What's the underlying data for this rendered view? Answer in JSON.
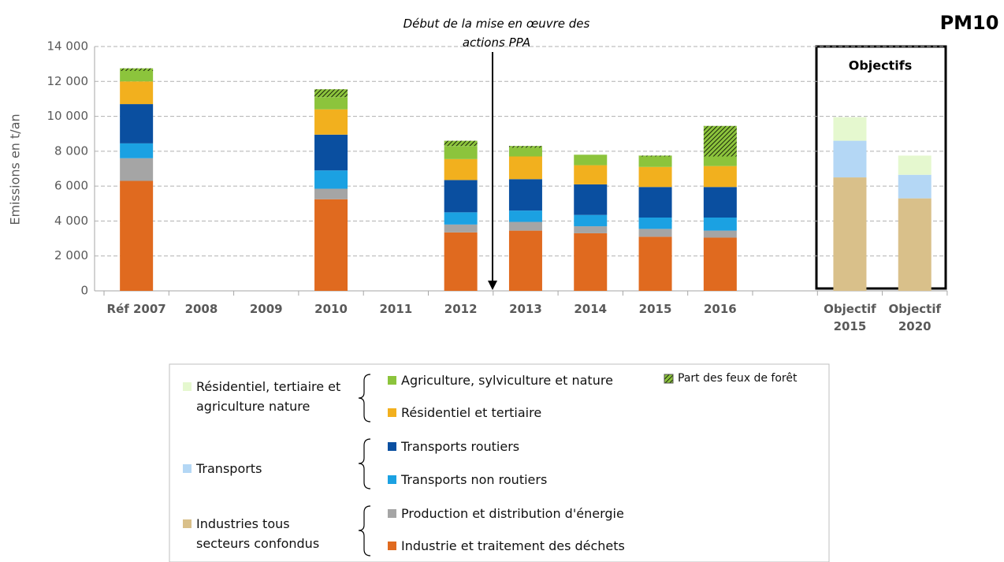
{
  "chart_data": {
    "type": "stacked-bar",
    "title": "PM10",
    "y_label": "Emissions en t/an",
    "annotation": "Début de la mise en œuvre des actions PPA",
    "box_label": "Objectifs",
    "categories": [
      "Réf 2007",
      "2008",
      "2009",
      "2010",
      "2011",
      "2012",
      "2013",
      "2014",
      "2015",
      "2016",
      null,
      "Objectif 2015",
      "Objectif 2020"
    ],
    "ylim": [
      0,
      14000
    ],
    "yticks": [
      0,
      {
        "value": 2000,
        "label": "2 000"
      },
      {
        "value": 4000,
        "label": "4 000"
      },
      {
        "value": 6000,
        "label": "6 000"
      },
      {
        "value": 8000,
        "label": "8 000"
      },
      {
        "value": 10000,
        "label": "10 000"
      },
      {
        "value": 12000,
        "label": "12 000"
      },
      {
        "value": 14000,
        "label": "14 000"
      }
    ],
    "grid": true,
    "series": [
      {
        "name": "Industrie et traitement des déchets",
        "color": "#e06a1f",
        "values": [
          6300,
          null,
          null,
          5250,
          null,
          3350,
          3450,
          3300,
          3100,
          3050,
          null,
          null,
          null
        ]
      },
      {
        "name": "Production et distribution d'énergie",
        "color": "#a5a5a5",
        "values": [
          1300,
          null,
          null,
          600,
          null,
          450,
          500,
          400,
          450,
          400,
          null,
          null,
          null
        ]
      },
      {
        "name": "Transports non routiers",
        "color": "#1ba1e2",
        "values": [
          850,
          null,
          null,
          1050,
          null,
          700,
          650,
          650,
          650,
          750,
          null,
          null,
          null
        ]
      },
      {
        "name": "Transports routiers",
        "color": "#0a4fa0",
        "values": [
          2250,
          null,
          null,
          2050,
          null,
          1850,
          1800,
          1750,
          1750,
          1750,
          null,
          null,
          null
        ]
      },
      {
        "name": "Résidentiel et tertiaire",
        "color": "#f2b01e",
        "values": [
          1300,
          null,
          null,
          1450,
          null,
          1200,
          1300,
          1100,
          1150,
          1200,
          null,
          null,
          null
        ]
      },
      {
        "name": "Agriculture, sylviculture et nature",
        "color": "#8cc43c",
        "values": [
          600,
          null,
          null,
          700,
          null,
          750,
          500,
          600,
          600,
          550,
          null,
          null,
          null
        ]
      },
      {
        "name": "Part des feux de forêt",
        "color": "#8cc43c",
        "hatch": true,
        "values": [
          150,
          null,
          null,
          450,
          null,
          300,
          100,
          null,
          50,
          1750,
          null,
          null,
          null
        ]
      },
      {
        "name": "Industries tous secteurs confondus",
        "color": "#d9c08a",
        "values": [
          null,
          null,
          null,
          null,
          null,
          null,
          null,
          null,
          null,
          null,
          null,
          6500,
          5300
        ]
      },
      {
        "name": "Transports",
        "color": "#b4d7f5",
        "values": [
          null,
          null,
          null,
          null,
          null,
          null,
          null,
          null,
          null,
          null,
          null,
          2100,
          1350
        ]
      },
      {
        "name": "Résidentiel, tertiaire et agriculture nature",
        "color": "#e5f8cf",
        "values": [
          null,
          null,
          null,
          null,
          null,
          null,
          null,
          null,
          null,
          null,
          null,
          1350,
          1100
        ]
      }
    ]
  }
}
